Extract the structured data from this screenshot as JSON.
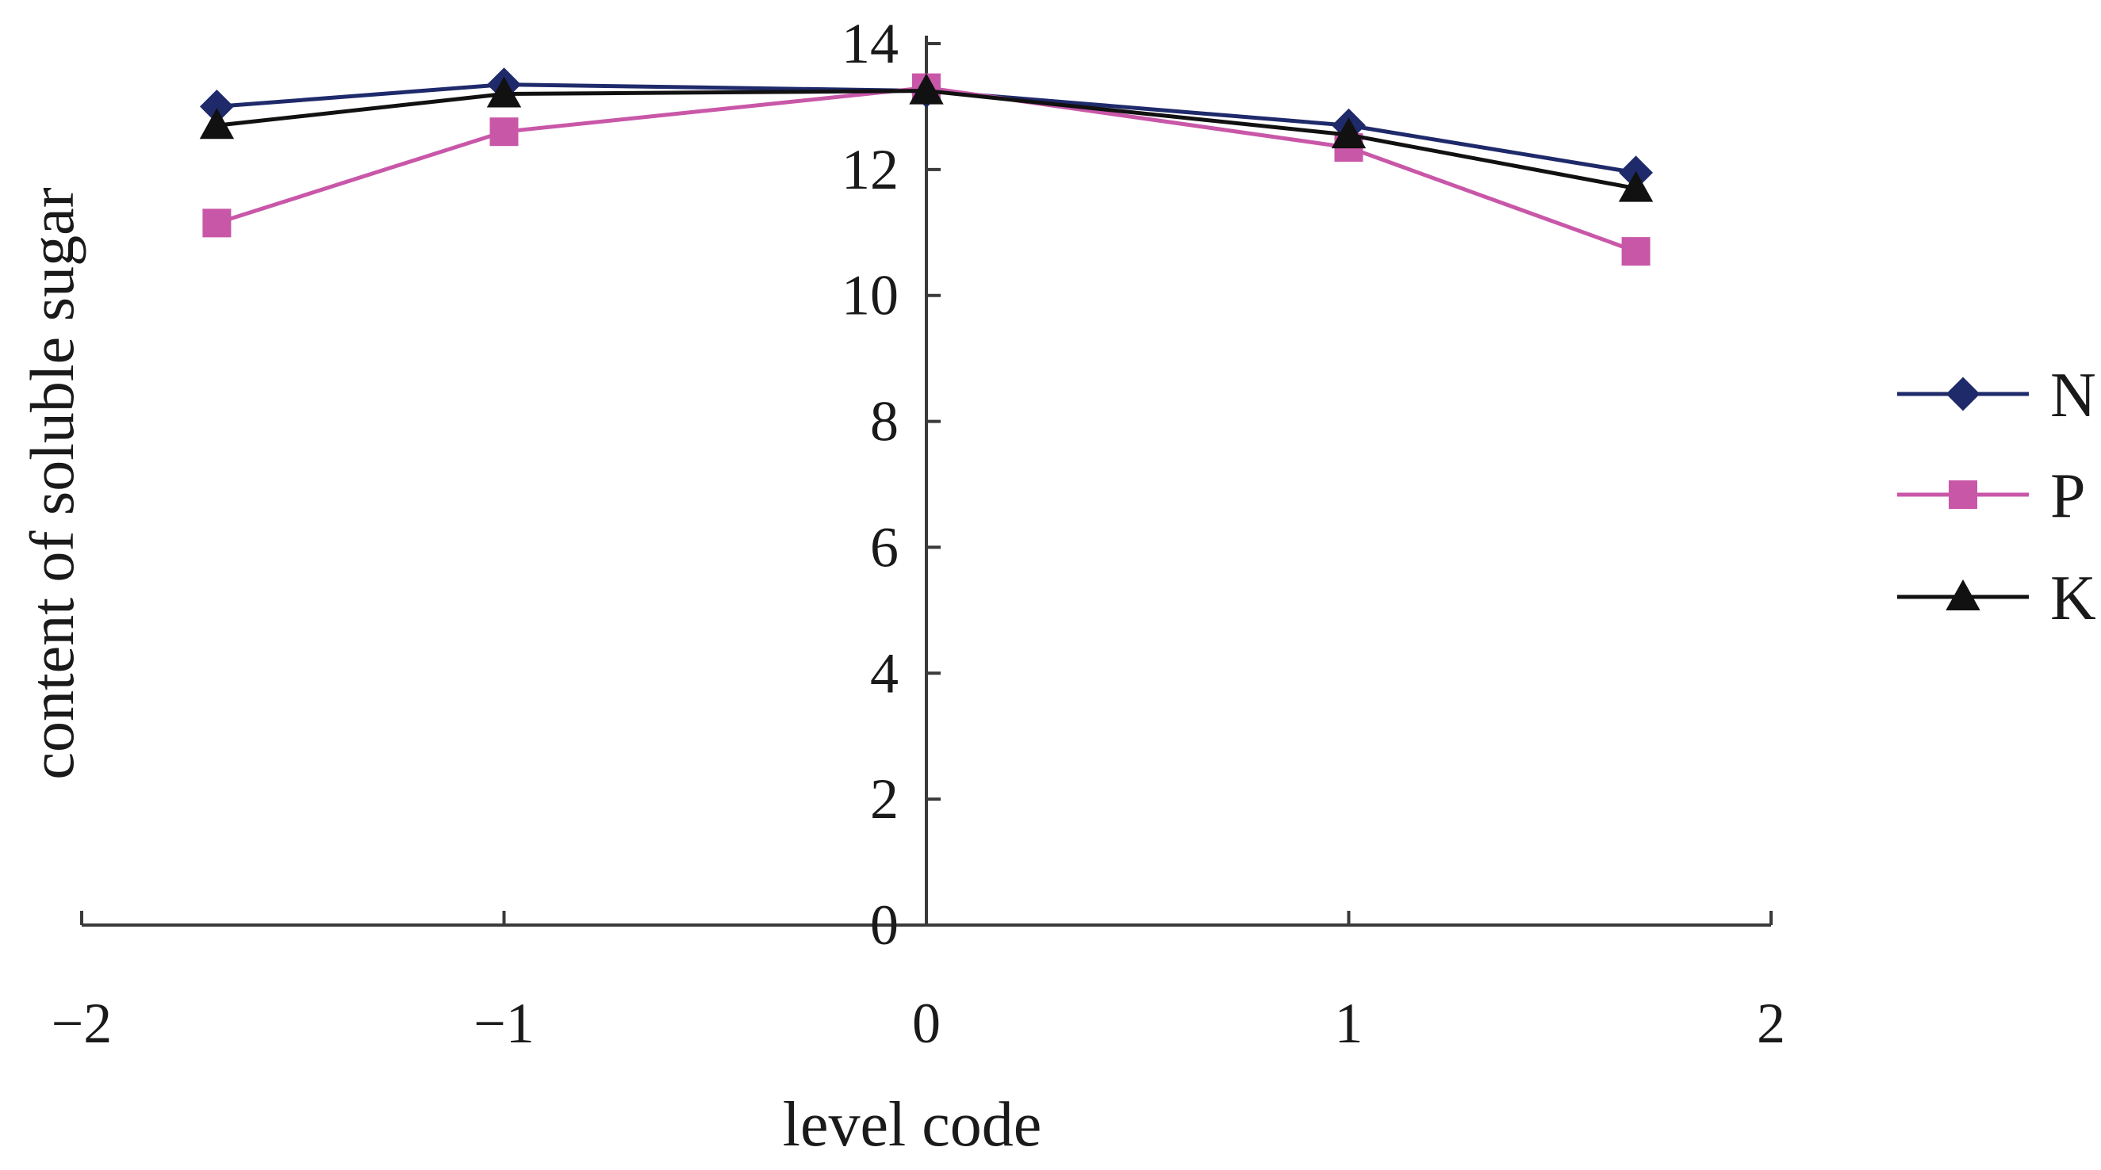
{
  "chart_data": {
    "type": "line",
    "title": "",
    "xlabel": "level code",
    "ylabel": "content of soluble sugar",
    "xlim": [
      -2,
      2
    ],
    "ylim": [
      0,
      14
    ],
    "x_ticks": [
      -2,
      -1,
      0,
      1,
      2
    ],
    "x_tick_labels": [
      "−2",
      "−1",
      "0",
      "1",
      "2"
    ],
    "y_ticks": [
      0,
      2,
      4,
      6,
      8,
      10,
      12,
      14
    ],
    "y_tick_labels": [
      "0",
      "2",
      "4",
      "6",
      "8",
      "10",
      "12",
      "14"
    ],
    "x": [
      -1.68,
      -1,
      0,
      1,
      1.68
    ],
    "grid": false,
    "legend_position": "right",
    "series": [
      {
        "name": "N",
        "values": [
          13.0,
          13.35,
          13.25,
          12.7,
          11.95
        ],
        "color": "#1f2a6b",
        "marker": "diamond"
      },
      {
        "name": "P",
        "values": [
          11.15,
          12.6,
          13.3,
          12.35,
          10.7
        ],
        "color": "#c957a8",
        "marker": "square"
      },
      {
        "name": "K",
        "values": [
          12.7,
          13.2,
          13.25,
          12.55,
          11.7
        ],
        "color": "#111111",
        "marker": "triangle"
      }
    ]
  }
}
